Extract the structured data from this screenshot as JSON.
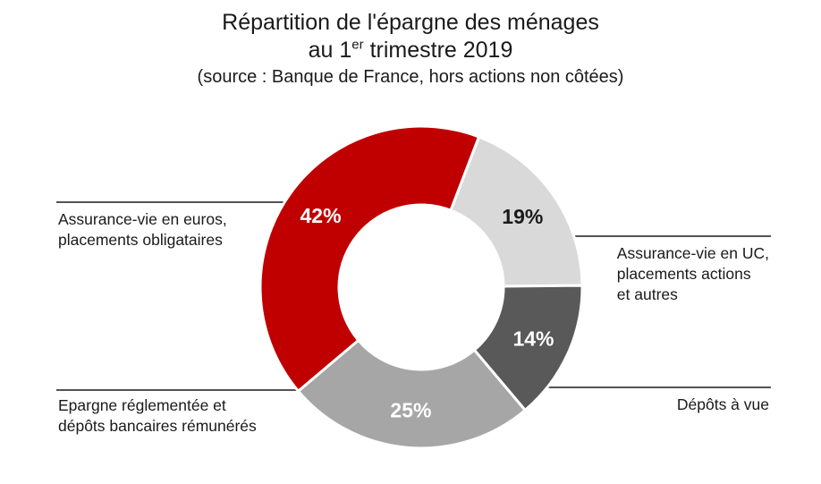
{
  "title": {
    "line1": "Répartition de l'épargne des ménages",
    "line2_prefix": "au 1",
    "line2_sup": "er",
    "line2_suffix": " trimestre 2019",
    "subtitle": "(source : Banque de France, hors actions non côtées)"
  },
  "chart_data": {
    "type": "pie",
    "donut": true,
    "unit": "%",
    "slices": [
      {
        "label_lines": [
          "Assurance-vie en UC,",
          "placements actions",
          "et autres"
        ],
        "value": 19,
        "value_label": "19%",
        "color": "#d9d9d9",
        "text_color": "#1a1a1a"
      },
      {
        "label_lines": [
          "Dépôts à vue"
        ],
        "value": 14,
        "value_label": "14%",
        "color": "#595959",
        "text_color": "#ffffff"
      },
      {
        "label_lines": [
          "Epargne réglementée et",
          "dépôts bancaires rémunérés"
        ],
        "value": 25,
        "value_label": "25%",
        "color": "#a6a6a6",
        "text_color": "#ffffff"
      },
      {
        "label_lines": [
          "Assurance-vie en euros,",
          "placements obligataires"
        ],
        "value": 42,
        "value_label": "42%",
        "color": "#c00000",
        "text_color": "#ffffff"
      }
    ]
  }
}
